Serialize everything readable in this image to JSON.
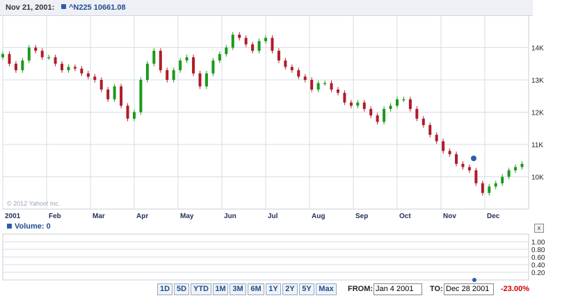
{
  "header": {
    "date": "Nov 21, 2001:",
    "legend": "^N225 10661.08"
  },
  "copyright": "© 2012 Yahoo! Inc.",
  "colors": {
    "up": "#1a9a1a",
    "down": "#b01c2a",
    "grid": "#d6dbe6",
    "accent": "#1f4d8a"
  },
  "volume": {
    "label": "Volume: 0",
    "close_label": "x"
  },
  "controls": {
    "ranges": [
      "1D",
      "5D",
      "YTD",
      "1M",
      "3M",
      "6M",
      "1Y",
      "2Y",
      "5Y",
      "Max"
    ],
    "from_label": "FROM:",
    "from_value": "Jan 4 2001",
    "to_label": "TO:",
    "to_value": "Dec 28 2001",
    "change": "-23.00%"
  },
  "chart_data": [
    {
      "type": "candlestick",
      "title": "",
      "series_name": "^N225",
      "x_ticks": [
        "2001",
        "Feb",
        "Mar",
        "Apr",
        "May",
        "Jun",
        "Jul",
        "Aug",
        "Sep",
        "Oct",
        "Nov",
        "Dec"
      ],
      "y_ticks": [
        "10K",
        "11K",
        "12K",
        "13K",
        "14K"
      ],
      "ylim": [
        9000,
        15000
      ],
      "xlim": [
        0,
        12
      ],
      "grid": true,
      "legend": "top-left",
      "x": [
        0,
        0.15,
        0.3,
        0.45,
        0.6,
        0.75,
        0.9,
        1.05,
        1.2,
        1.35,
        1.5,
        1.65,
        1.8,
        1.95,
        2.1,
        2.25,
        2.4,
        2.55,
        2.7,
        2.85,
        3.0,
        3.15,
        3.3,
        3.45,
        3.6,
        3.75,
        3.9,
        4.05,
        4.2,
        4.35,
        4.5,
        4.65,
        4.8,
        4.95,
        5.1,
        5.25,
        5.4,
        5.55,
        5.7,
        5.85,
        6.0,
        6.15,
        6.3,
        6.45,
        6.6,
        6.75,
        6.9,
        7.05,
        7.2,
        7.35,
        7.5,
        7.65,
        7.8,
        7.95,
        8.1,
        8.25,
        8.4,
        8.55,
        8.7,
        8.85,
        9.0,
        9.15,
        9.3,
        9.45,
        9.6,
        9.75,
        9.9,
        10.05,
        10.2,
        10.35,
        10.5,
        10.65,
        10.8,
        10.95,
        11.1,
        11.25,
        11.4,
        11.55,
        11.7,
        11.85
      ],
      "close": [
        13800,
        13500,
        13300,
        13600,
        14000,
        13900,
        13700,
        13700,
        13500,
        13300,
        13400,
        13350,
        13200,
        13100,
        13000,
        12700,
        12400,
        12800,
        12200,
        11800,
        12000,
        13000,
        13500,
        13900,
        13300,
        13000,
        13300,
        13600,
        13700,
        13200,
        12800,
        13200,
        13600,
        13800,
        14000,
        14400,
        14300,
        14100,
        13900,
        14200,
        14300,
        13900,
        13600,
        13400,
        13300,
        13100,
        13000,
        12700,
        12900,
        12900,
        12700,
        12600,
        12300,
        12200,
        12300,
        12100,
        11900,
        11700,
        12100,
        12200,
        12400,
        12400,
        12100,
        11800,
        11600,
        11300,
        11100,
        10800,
        10700,
        10400,
        10300,
        10200,
        9800,
        9500,
        9700,
        9800,
        10000,
        10200,
        10300,
        10400
      ]
    },
    {
      "type": "bar",
      "title": "Volume",
      "y_ticks": [
        "0.20",
        "0.40",
        "0.60",
        "0.80",
        "1.00"
      ],
      "ylim": [
        0,
        1.2
      ],
      "values": []
    }
  ]
}
